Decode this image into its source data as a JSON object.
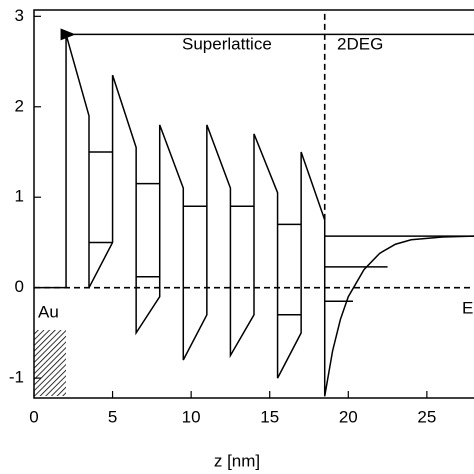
{
  "chart_data": {
    "type": "line",
    "xlabel": "z [nm]",
    "xlim": [
      0,
      28
    ],
    "ylim": [
      -1.22,
      3.07
    ],
    "xticks": [
      0,
      5,
      10,
      15,
      20,
      25
    ],
    "yticks": [
      -1,
      0,
      1,
      2,
      3
    ],
    "color": "#000000",
    "annotations": [
      "Superlattice",
      "2DEG",
      "Au",
      "E"
    ],
    "lines": [
      {
        "x": [
          0,
          2.04,
          2.04,
          3.5,
          3.5,
          5.0,
          5.0,
          6.5,
          6.5,
          8.0,
          8.0,
          9.5,
          9.5,
          11.0,
          11.0,
          12.5,
          12.5,
          14.0,
          14.0,
          15.5,
          15.5,
          17.0,
          17.0,
          18.5,
          18.5
        ],
        "values": [
          0,
          0,
          2.8,
          1.9,
          0,
          0.5,
          2.35,
          1.55,
          -0.5,
          -0.1,
          1.8,
          1.1,
          -0.8,
          -0.3,
          1.8,
          1.1,
          -0.75,
          -0.3,
          1.7,
          1.05,
          -1.0,
          -0.5,
          1.5,
          0.75,
          -1.2
        ],
        "dashed": false
      },
      {
        "x": [
          18.5,
          19,
          19.5,
          20,
          21,
          22,
          23,
          24,
          26,
          28
        ],
        "values": [
          -1.2,
          -0.7,
          -0.35,
          -0.1,
          0.2,
          0.38,
          0.48,
          0.53,
          0.56,
          0.57
        ],
        "dashed": false
      },
      {
        "x": [
          3.5,
          5.0
        ],
        "values": [
          1.5,
          1.5
        ],
        "dashed": false
      },
      {
        "x": [
          3.5,
          5.0
        ],
        "values": [
          0.5,
          0.5
        ],
        "dashed": false
      },
      {
        "x": [
          6.5,
          8.0
        ],
        "values": [
          1.15,
          1.15
        ],
        "dashed": false
      },
      {
        "x": [
          6.5,
          8.0
        ],
        "values": [
          0.12,
          0.12
        ],
        "dashed": false
      },
      {
        "x": [
          9.5,
          11.0
        ],
        "values": [
          0.9,
          0.9
        ],
        "dashed": false
      },
      {
        "x": [
          12.5,
          14.0
        ],
        "values": [
          0.9,
          0.9
        ],
        "dashed": false
      },
      {
        "x": [
          15.5,
          17.0
        ],
        "values": [
          0.7,
          0.7
        ],
        "dashed": false
      },
      {
        "x": [
          15.5,
          17.0
        ],
        "values": [
          -0.3,
          -0.3
        ],
        "dashed": false
      },
      {
        "x": [
          18.5,
          28
        ],
        "values": [
          0.57,
          0.57
        ],
        "dashed": false
      },
      {
        "x": [
          18.5,
          22.5
        ],
        "values": [
          0.23,
          0.23
        ],
        "dashed": false
      },
      {
        "x": [
          18.5,
          20.3
        ],
        "values": [
          -0.15,
          -0.15
        ],
        "dashed": false
      },
      {
        "x": [
          0,
          28
        ],
        "values": [
          0,
          0
        ],
        "dashed": true
      },
      {
        "x": [
          18.5,
          18.5
        ],
        "values": [
          0.75,
          3.07
        ],
        "dashed": true
      }
    ],
    "arrow": {
      "x": [
        2.04,
        28
      ],
      "values": [
        2.8,
        2.8
      ]
    }
  }
}
